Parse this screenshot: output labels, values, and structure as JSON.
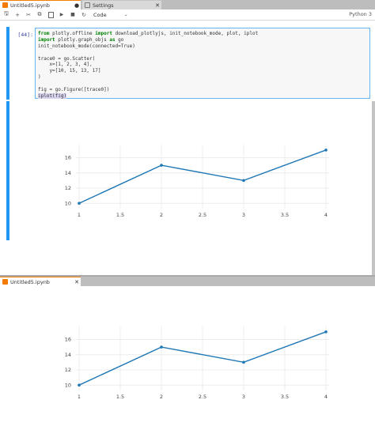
{
  "window1": {
    "tabs": [
      {
        "label": "Untitled5.ipynb",
        "control": "●",
        "icon": "notebook-icon"
      },
      {
        "label": "Settings",
        "control": "✕",
        "icon": "settings-icon"
      }
    ],
    "toolbar": {
      "buttons": [
        {
          "icon": "save-icon",
          "glyph": "🖫"
        },
        {
          "icon": "add-cell-icon",
          "glyph": "+"
        },
        {
          "icon": "cut-icon",
          "glyph": "✂"
        },
        {
          "icon": "copy-icon",
          "glyph": "⧉"
        },
        {
          "icon": "paste-icon",
          "glyph": "📋"
        },
        {
          "icon": "run-icon",
          "glyph": "▶"
        },
        {
          "icon": "stop-icon",
          "glyph": "■"
        },
        {
          "icon": "restart-icon",
          "glyph": "↻"
        }
      ],
      "cell_type": "Code",
      "cell_type_chevron": "⌄",
      "kernel": "Python 3"
    },
    "cell": {
      "prompt": "[44]:",
      "code": [
        "from plotly.offline import download_plotlyjs, init_notebook_mode, plot, iplot",
        "import plotly.graph_objs as go",
        "init_notebook_mode(connected=True)",
        "",
        "trace0 = go.Scatter(",
        "    x=[1, 2, 3, 4],",
        "    y=[10, 15, 13, 17]",
        ")",
        "",
        "fig = go.Figure([trace0])",
        "iplot(fig)"
      ]
    }
  },
  "window2": {
    "tabs": [
      {
        "label": "Untitled5.ipynb",
        "control": "✕",
        "icon": "notebook-icon"
      }
    ]
  },
  "colors": {
    "line": "#1f77b4",
    "accent": "#2196f3",
    "tab_accent": "#f57c00"
  },
  "chart_data": [
    {
      "type": "line",
      "mode": "lines+markers",
      "x": [
        1,
        2,
        3,
        4
      ],
      "y": [
        10,
        15,
        13,
        17
      ],
      "xlim": [
        1,
        4
      ],
      "ylim": [
        9.5,
        17.5
      ],
      "xticks": [
        "1",
        "1.5",
        "2",
        "2.5",
        "3",
        "3.5",
        "4"
      ],
      "xtick_values": [
        1,
        1.5,
        2,
        2.5,
        3,
        3.5,
        4
      ],
      "yticks": [
        "10",
        "12",
        "14",
        "16"
      ],
      "ytick_values": [
        10,
        12,
        14,
        16
      ],
      "grid": true
    },
    {
      "type": "line",
      "mode": "lines+markers",
      "x": [
        1,
        2,
        3,
        4
      ],
      "y": [
        10,
        15,
        13,
        17
      ],
      "xlim": [
        1,
        4
      ],
      "ylim": [
        9.5,
        17.5
      ],
      "xticks": [
        "1",
        "1.5",
        "2",
        "2.5",
        "3",
        "3.5",
        "4"
      ],
      "xtick_values": [
        1,
        1.5,
        2,
        2.5,
        3,
        3.5,
        4
      ],
      "yticks": [
        "10",
        "12",
        "14",
        "16"
      ],
      "ytick_values": [
        10,
        12,
        14,
        16
      ],
      "grid": true
    }
  ]
}
